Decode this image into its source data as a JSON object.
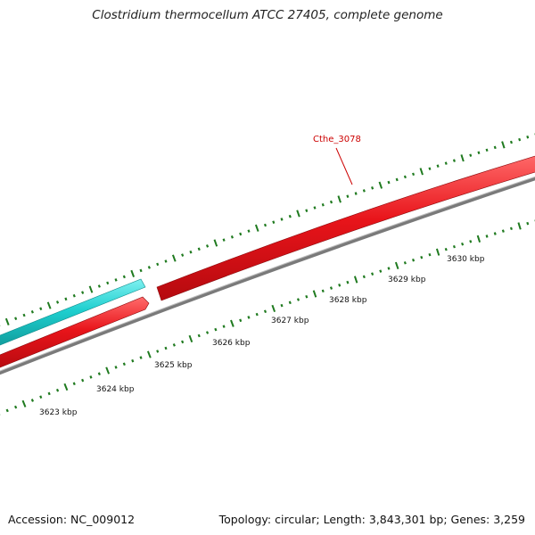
{
  "title": "Clostridium thermocellum ATCC 27405, complete genome",
  "footer": {
    "accession": "Accession: NC_009012",
    "summary": "Topology: circular; Length: 3,843,301 bp; Genes: 3,259"
  },
  "colors": {
    "forward_gene": "#e8141a",
    "reverse_gene": "#1ecfcf",
    "backbone": "#7a7a7a",
    "ticks": "#1f7a1f",
    "label": "#cc0000"
  },
  "scale_labels": [
    "3623 kbp",
    "3624 kbp",
    "3625 kbp",
    "3626 kbp",
    "3627 kbp",
    "3628 kbp",
    "3629 kbp",
    "3630 kbp"
  ],
  "highlight_gene": {
    "name": "Cthe_3078"
  }
}
